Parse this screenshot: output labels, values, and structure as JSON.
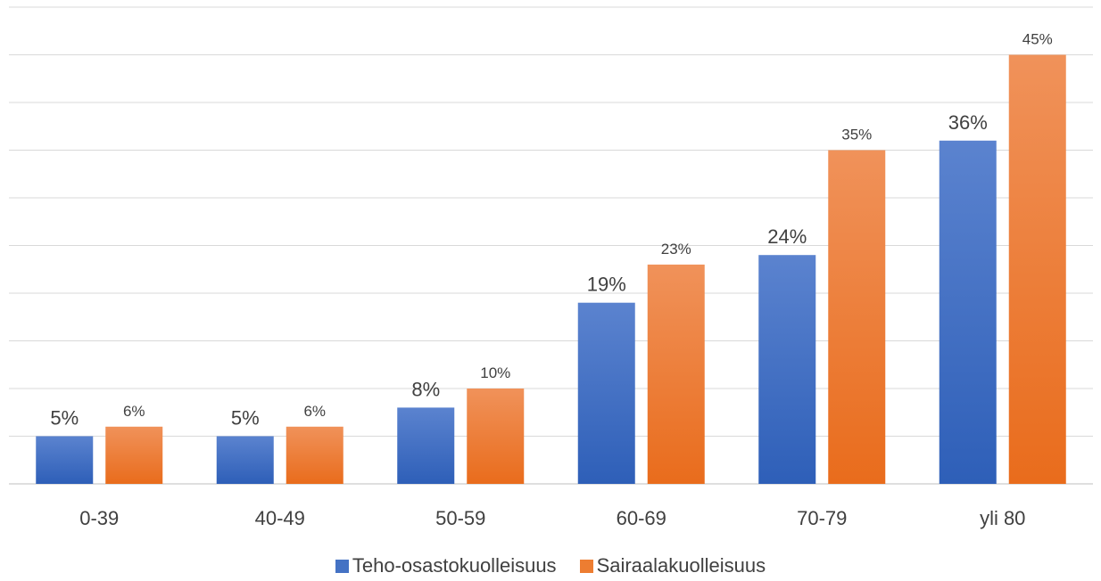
{
  "chart_data": {
    "type": "bar",
    "categories": [
      "0-39",
      "40-49",
      "50-59",
      "60-69",
      "70-79",
      "yli 80"
    ],
    "series": [
      {
        "name": "Teho-osastokuolleisuus",
        "values": [
          5,
          5,
          8,
          19,
          24,
          36
        ],
        "labels": [
          "5%",
          "5%",
          "8%",
          "19%",
          "24%",
          "36%"
        ],
        "color": "#4472C4"
      },
      {
        "name": "Sairaalakuolleisuus",
        "values": [
          6,
          6,
          10,
          23,
          35,
          45
        ],
        "labels": [
          "6%",
          "6%",
          "10%",
          "23%",
          "35%",
          "45%"
        ],
        "color": "#ED7D31"
      }
    ],
    "ylim": [
      0,
      50
    ],
    "grid": true,
    "legend_position": "bottom"
  }
}
